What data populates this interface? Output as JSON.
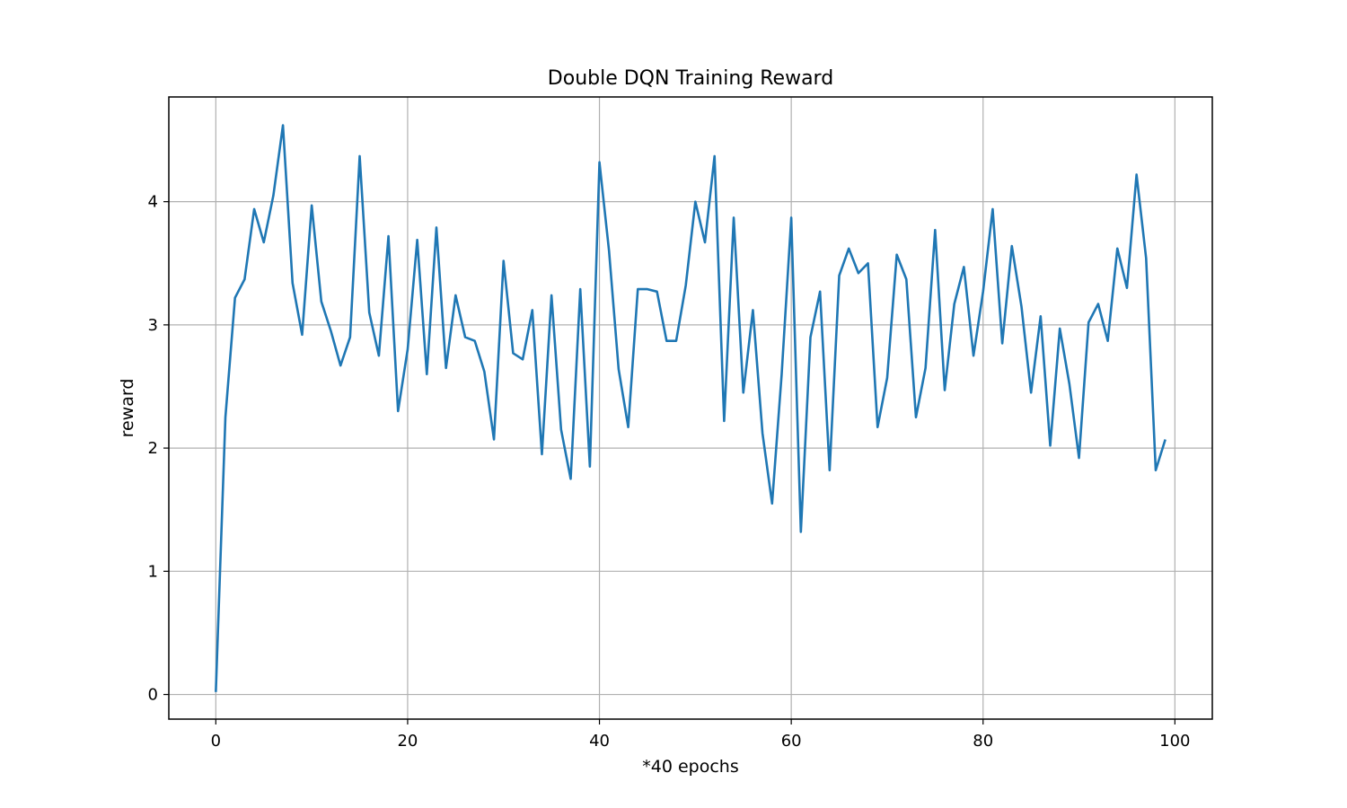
{
  "chart_data": {
    "type": "line",
    "title": "Double DQN Training Reward",
    "xlabel": "*40 epochs",
    "ylabel": "reward",
    "xlim": [
      -4.9,
      103.9
    ],
    "ylim": [
      -0.2,
      4.85
    ],
    "xticks": [
      0,
      20,
      40,
      60,
      80,
      100
    ],
    "yticks": [
      0,
      1,
      2,
      3,
      4
    ],
    "grid": true,
    "line_color": "#1f77b4",
    "series": [
      {
        "x": [
          0,
          1,
          2,
          3,
          4,
          5,
          6,
          7,
          8,
          9,
          10,
          11,
          12,
          13,
          14,
          15,
          16,
          17,
          18,
          19,
          20,
          21,
          22,
          23,
          24,
          25,
          26,
          27,
          28,
          29,
          30,
          31,
          32,
          33,
          34,
          35,
          36,
          37,
          38,
          39,
          40,
          41,
          42,
          43,
          44,
          45,
          46,
          47,
          48,
          49,
          50,
          51,
          52,
          53,
          54,
          55,
          56,
          57,
          58,
          59,
          60,
          61,
          62,
          63,
          64,
          65,
          66,
          67,
          68,
          69,
          70,
          71,
          72,
          73,
          74,
          75,
          76,
          77,
          78,
          79,
          80,
          81,
          82,
          83,
          84,
          85,
          86,
          87,
          88,
          89,
          90,
          91,
          92,
          93,
          94,
          95,
          96,
          97,
          98,
          99
        ],
        "values": [
          0.02,
          2.25,
          3.22,
          3.37,
          3.94,
          3.67,
          4.05,
          4.62,
          3.34,
          2.92,
          3.97,
          3.19,
          2.95,
          2.67,
          2.9,
          4.37,
          3.1,
          2.75,
          3.72,
          2.3,
          2.8,
          3.69,
          2.6,
          3.79,
          2.65,
          3.24,
          2.9,
          2.87,
          2.62,
          2.07,
          3.52,
          2.77,
          2.72,
          3.12,
          1.95,
          3.24,
          2.15,
          1.75,
          3.29,
          1.85,
          4.32,
          3.6,
          2.64,
          2.17,
          3.29,
          3.29,
          3.27,
          2.87,
          2.87,
          3.32,
          4.0,
          3.67,
          4.37,
          2.22,
          3.87,
          2.45,
          3.12,
          2.12,
          1.55,
          2.6,
          3.87,
          1.32,
          2.9,
          3.27,
          1.82,
          3.4,
          3.62,
          3.42,
          3.5,
          2.17,
          2.57,
          3.57,
          3.37,
          2.25,
          2.65,
          3.77,
          2.47,
          3.17,
          3.47,
          2.75,
          3.27,
          3.94,
          2.85,
          3.64,
          3.15,
          2.45,
          3.07,
          2.02,
          2.97,
          2.52,
          1.92,
          3.02,
          3.17,
          2.87,
          3.62,
          3.3,
          4.22,
          3.54,
          1.82,
          2.07
        ]
      }
    ]
  }
}
